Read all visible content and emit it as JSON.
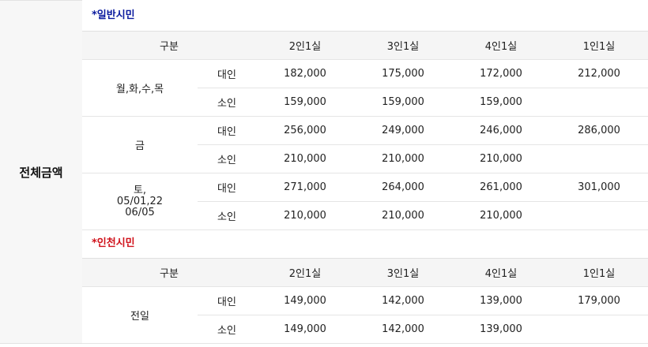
{
  "total_label": "전체금액",
  "sections": [
    {
      "title": "*일반시민",
      "headers": [
        "구분",
        "2인1실",
        "3인1실",
        "4인1실",
        "1인1실"
      ],
      "groups": [
        {
          "day": "월,화,수,목",
          "rows": [
            {
              "type": "대인",
              "values": [
                "182,000",
                "175,000",
                "172,000",
                "212,000"
              ]
            },
            {
              "type": "소인",
              "values": [
                "159,000",
                "159,000",
                "159,000",
                ""
              ]
            }
          ]
        },
        {
          "day": "금",
          "rows": [
            {
              "type": "대인",
              "values": [
                "256,000",
                "249,000",
                "246,000",
                "286,000"
              ]
            },
            {
              "type": "소인",
              "values": [
                "210,000",
                "210,000",
                "210,000",
                ""
              ]
            }
          ]
        },
        {
          "day_lines": [
            "토,",
            "05/01,22",
            "06/05"
          ],
          "rows": [
            {
              "type": "대인",
              "values": [
                "271,000",
                "264,000",
                "261,000",
                "301,000"
              ]
            },
            {
              "type": "소인",
              "values": [
                "210,000",
                "210,000",
                "210,000",
                ""
              ]
            }
          ]
        }
      ]
    },
    {
      "title": "*인천시민",
      "headers": [
        "구분",
        "2인1실",
        "3인1실",
        "4인1실",
        "1인1실"
      ],
      "groups": [
        {
          "day": "전일",
          "rows": [
            {
              "type": "대인",
              "values": [
                "149,000",
                "142,000",
                "139,000",
                "179,000"
              ]
            },
            {
              "type": "소인",
              "values": [
                "149,000",
                "142,000",
                "139,000",
                ""
              ]
            }
          ]
        }
      ]
    }
  ]
}
